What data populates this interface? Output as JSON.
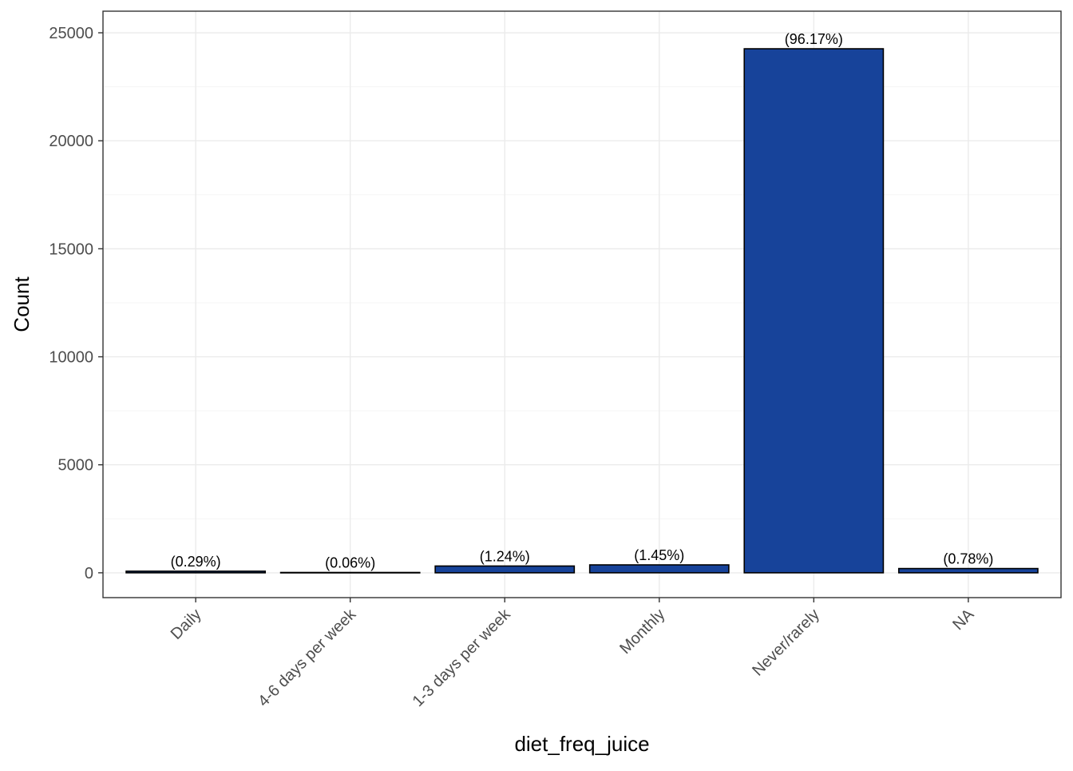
{
  "chart_data": {
    "type": "bar",
    "title": "",
    "xlabel": "diet_freq_juice",
    "ylabel": "Count",
    "categories": [
      "Daily",
      "4-6 days per week",
      "1-3 days per week",
      "Monthly",
      "Never/rarely",
      "NA"
    ],
    "values": [
      73,
      15,
      313,
      366,
      24260,
      197
    ],
    "data_labels": [
      "(0.29%)",
      "(0.06%)",
      "(1.24%)",
      "(1.45%)",
      "(96.17%)",
      "(0.78%)"
    ],
    "ylim": [
      -1150,
      26000
    ],
    "yticks": [
      0,
      5000,
      10000,
      15000,
      20000,
      25000
    ],
    "ytick_labels": [
      "0",
      "5000",
      "10000",
      "15000",
      "20000",
      "25000"
    ],
    "grid": true,
    "legend": "none",
    "colors": {
      "bar_fill": "#17439a",
      "bar_stroke": "#000000",
      "grid_major": "#ebebeb",
      "grid_minor": "#f5f5f5",
      "panel_border": "#333333"
    }
  }
}
